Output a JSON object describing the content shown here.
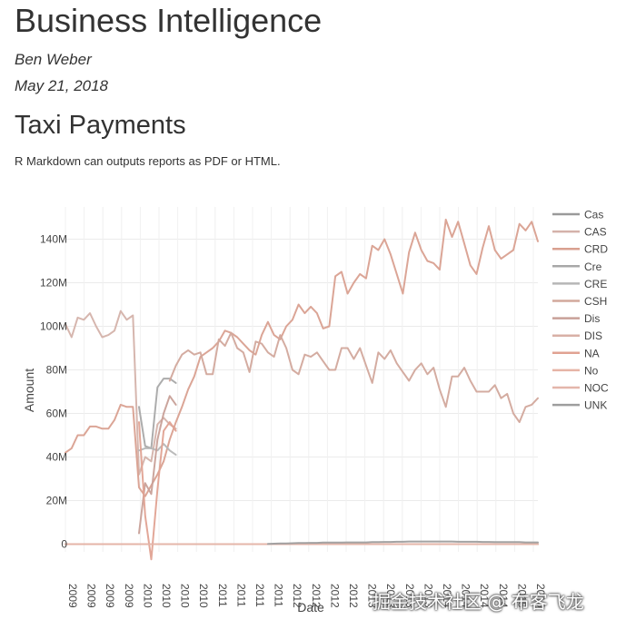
{
  "report": {
    "title": "Business Intelligence",
    "author": "Ben Weber",
    "date": "May 21, 2018"
  },
  "section": {
    "heading": "Taxi Payments",
    "text": "R Markdown can outputs reports as PDF or HTML."
  },
  "watermark": "掘金技术社区 @ 布客飞龙",
  "chart_data": {
    "type": "line",
    "xlabel": "Date",
    "ylabel": "Amount",
    "ylim": [
      -7,
      150
    ],
    "yunit": "M",
    "grid": true,
    "legend_placement": "right",
    "y_ticks": [
      0,
      20,
      40,
      60,
      80,
      100,
      120,
      140
    ],
    "y_tick_labels": [
      "0",
      "20M",
      "40M",
      "60M",
      "80M",
      "100M",
      "120M",
      "140M"
    ],
    "x_tick_labels": [
      "2009",
      "2009",
      "2009",
      "2009",
      "2010",
      "2010",
      "2010",
      "2010",
      "2011",
      "2011",
      "2011",
      "2011",
      "2012",
      "2012",
      "2012",
      "2012",
      "2013",
      "2013",
      "2013",
      "2013",
      "2014",
      "2014",
      "2014",
      "2014",
      "2015",
      "2015"
    ],
    "x": [
      "2009-01",
      "2009-02",
      "2009-03",
      "2009-04",
      "2009-05",
      "2009-06",
      "2009-07",
      "2009-08",
      "2009-09",
      "2009-10",
      "2009-11",
      "2009-12",
      "2010-01",
      "2010-02",
      "2010-03",
      "2010-04",
      "2010-05",
      "2010-06",
      "2010-07",
      "2010-08",
      "2010-09",
      "2010-10",
      "2010-11",
      "2010-12",
      "2011-01",
      "2011-02",
      "2011-03",
      "2011-04",
      "2011-05",
      "2011-06",
      "2011-07",
      "2011-08",
      "2011-09",
      "2011-10",
      "2011-11",
      "2011-12",
      "2012-01",
      "2012-02",
      "2012-03",
      "2012-04",
      "2012-05",
      "2012-06",
      "2012-07",
      "2012-08",
      "2012-09",
      "2012-10",
      "2012-11",
      "2012-12",
      "2013-01",
      "2013-02",
      "2013-03",
      "2013-04",
      "2013-05",
      "2013-06",
      "2013-07",
      "2013-08",
      "2013-09",
      "2013-10",
      "2013-11",
      "2013-12",
      "2014-01",
      "2014-02",
      "2014-03",
      "2014-04",
      "2014-05",
      "2014-06",
      "2014-07",
      "2014-08",
      "2014-09",
      "2014-10",
      "2014-11",
      "2014-12",
      "2015-01",
      "2015-02",
      "2015-03",
      "2015-04",
      "2015-05",
      "2015-06"
    ],
    "series": [
      {
        "name": "Cas",
        "color": "#9a9a9a",
        "values": [
          0,
          0,
          0,
          0,
          0,
          0,
          0,
          0,
          0,
          0,
          0,
          0,
          0,
          0,
          0,
          0,
          0,
          0,
          0,
          0,
          0,
          0,
          0,
          0,
          0,
          0,
          0,
          0,
          0,
          0,
          0,
          0,
          0,
          0,
          0,
          0,
          0,
          0,
          0,
          0,
          0,
          0,
          0,
          0,
          0,
          0,
          0,
          0,
          0,
          0,
          0,
          0,
          0,
          0,
          0,
          0,
          0,
          0,
          0,
          0,
          0,
          0,
          0,
          0,
          0,
          0,
          0,
          0,
          0,
          0,
          0,
          0,
          0,
          0,
          0,
          0,
          0,
          0
        ]
      },
      {
        "name": "CAS",
        "color": "#d4b2aa",
        "values": [
          101,
          95,
          104,
          103,
          106,
          100,
          95,
          96,
          98,
          107,
          103,
          105,
          32,
          40,
          38,
          55,
          58,
          55,
          53,
          null,
          null,
          null,
          null,
          null,
          null,
          null,
          null,
          null,
          null,
          null,
          null,
          null,
          null,
          null,
          null,
          null,
          null,
          null,
          null,
          null,
          null,
          null,
          null,
          null,
          null,
          null,
          null,
          null,
          null,
          null,
          null,
          null,
          null,
          null,
          null,
          null,
          null,
          null,
          null,
          null,
          null,
          null,
          null,
          null,
          null,
          null,
          null,
          null,
          null,
          null,
          null,
          null,
          null,
          null,
          null,
          null,
          null,
          null
        ]
      },
      {
        "name": "CRD",
        "color": "#d9a090",
        "values": [
          42,
          44,
          50,
          50,
          54,
          54,
          53,
          53,
          57,
          64,
          63,
          63,
          26,
          22,
          27,
          32,
          38,
          48,
          56,
          63,
          71,
          77,
          86,
          88,
          90,
          93,
          98,
          97,
          95,
          92,
          89,
          87,
          96,
          102,
          96,
          94,
          100,
          103,
          110,
          106,
          109,
          106,
          99,
          100,
          123,
          125,
          115,
          120,
          124,
          122,
          137,
          135,
          140,
          133,
          124,
          115,
          134,
          143,
          135,
          130,
          129,
          126,
          149,
          141,
          148,
          138,
          128,
          124,
          136,
          146,
          135,
          131,
          133,
          135,
          147,
          144,
          148,
          139
        ]
      },
      {
        "name": "Cre",
        "color": "#a8a8a8",
        "values": [
          null,
          null,
          null,
          null,
          null,
          null,
          null,
          null,
          null,
          null,
          null,
          null,
          63,
          45,
          44,
          72,
          76,
          76,
          74,
          null,
          null,
          null,
          null,
          null,
          null,
          null,
          null,
          null,
          null,
          null,
          null,
          null,
          null,
          null,
          null,
          null,
          null,
          null,
          null,
          null,
          null,
          null,
          null,
          null,
          null,
          null,
          null,
          null,
          null,
          null,
          null,
          null,
          null,
          null,
          null,
          null,
          null,
          null,
          null,
          null,
          null,
          null,
          null,
          null,
          null,
          null,
          null,
          null,
          null,
          null,
          null,
          null,
          null,
          null,
          null,
          null,
          null,
          null
        ]
      },
      {
        "name": "CRE",
        "color": "#b6b6b6",
        "values": [
          null,
          null,
          null,
          null,
          null,
          null,
          null,
          null,
          null,
          null,
          null,
          null,
          43,
          44,
          44,
          43,
          46,
          43,
          41,
          null,
          null,
          null,
          null,
          null,
          null,
          null,
          null,
          null,
          null,
          null,
          null,
          null,
          null,
          null,
          null,
          null,
          null,
          null,
          null,
          null,
          null,
          null,
          null,
          null,
          null,
          null,
          null,
          null,
          null,
          null,
          null,
          null,
          null,
          null,
          null,
          null,
          null,
          null,
          null,
          null,
          null,
          null,
          null,
          null,
          null,
          null,
          null,
          null,
          null,
          null,
          null,
          null,
          null,
          null,
          null,
          null,
          null,
          null
        ]
      },
      {
        "name": "CSH",
        "color": "#d2a89c",
        "values": [
          null,
          null,
          null,
          null,
          null,
          null,
          null,
          null,
          null,
          null,
          null,
          null,
          null,
          null,
          null,
          null,
          null,
          75,
          82,
          87,
          89,
          87,
          88,
          78,
          78,
          94,
          91,
          97,
          90,
          88,
          79,
          93,
          92,
          88,
          86,
          96,
          90,
          80,
          78,
          87,
          86,
          88,
          84,
          80,
          80,
          90,
          90,
          85,
          90,
          82,
          74,
          88,
          85,
          89,
          83,
          79,
          75,
          80,
          83,
          78,
          81,
          71,
          63,
          77,
          77,
          81,
          75,
          70,
          70,
          70,
          73,
          67,
          69,
          60,
          56,
          63,
          64,
          67
        ]
      },
      {
        "name": "Dis",
        "color": "#c8a098",
        "values": [
          null,
          null,
          null,
          null,
          null,
          null,
          null,
          null,
          null,
          null,
          null,
          null,
          5,
          28,
          23,
          48,
          60,
          68,
          64,
          null,
          null,
          null,
          null,
          null,
          null,
          null,
          null,
          null,
          null,
          null,
          null,
          null,
          null,
          null,
          null,
          null,
          null,
          null,
          null,
          null,
          null,
          null,
          null,
          null,
          null,
          null,
          null,
          null,
          null,
          null,
          null,
          null,
          null,
          null,
          null,
          null,
          null,
          null,
          null,
          null,
          null,
          null,
          null,
          null,
          null,
          null,
          null,
          null,
          null,
          null,
          null,
          null,
          null,
          null,
          null,
          null,
          null,
          null
        ]
      },
      {
        "name": "DIS",
        "color": "#d8b0a6",
        "values": [
          0,
          0,
          0,
          0,
          0,
          0,
          0,
          0,
          0,
          0,
          0,
          0,
          0,
          0,
          0,
          0,
          0,
          0,
          0,
          0,
          0,
          0,
          0,
          0,
          0,
          0,
          0,
          0,
          0,
          0,
          0,
          0,
          0,
          0,
          0,
          0,
          0,
          0,
          0,
          0,
          0,
          0,
          0,
          0,
          0,
          0,
          0,
          0,
          0,
          0,
          0,
          0,
          0,
          0,
          0,
          0,
          0,
          0,
          0,
          0,
          0,
          0,
          0,
          0,
          0,
          0,
          0,
          0,
          0,
          0,
          0,
          0,
          0,
          0,
          0,
          0,
          0,
          0
        ]
      },
      {
        "name": "NA",
        "color": "#e0a292",
        "values": [
          null,
          null,
          null,
          null,
          null,
          null,
          null,
          null,
          null,
          null,
          null,
          null,
          56,
          13,
          -7,
          25,
          52,
          56,
          52,
          null,
          null,
          null,
          null,
          null,
          null,
          null,
          null,
          null,
          null,
          null,
          null,
          null,
          null,
          null,
          null,
          null,
          null,
          null,
          null,
          null,
          null,
          null,
          null,
          null,
          null,
          null,
          null,
          null,
          null,
          null,
          null,
          null,
          null,
          null,
          null,
          null,
          null,
          null,
          null,
          null,
          null,
          null,
          null,
          null,
          null,
          null,
          null,
          null,
          null,
          null,
          null,
          null,
          null,
          null,
          null,
          null,
          null,
          null
        ]
      },
      {
        "name": "No",
        "color": "#e6b4a6",
        "values": [
          0,
          0,
          0,
          0,
          0,
          0,
          0,
          0,
          0,
          0,
          0,
          0,
          0,
          0,
          0,
          0,
          0,
          0,
          0,
          0,
          0,
          0,
          0,
          0,
          0,
          0,
          0,
          0,
          0,
          0,
          0,
          0,
          0,
          0,
          0,
          0,
          0,
          0,
          0,
          0,
          0,
          0,
          0,
          0,
          0,
          0,
          0,
          0,
          0,
          0,
          0,
          0,
          0,
          0,
          0,
          0,
          0,
          0,
          0,
          0,
          0,
          0,
          0,
          0,
          0,
          0,
          0,
          0,
          0,
          0,
          0,
          0,
          0,
          0,
          0,
          0,
          0,
          0
        ]
      },
      {
        "name": "NOC",
        "color": "#e4b6aa",
        "values": [
          null,
          null,
          null,
          null,
          null,
          null,
          null,
          null,
          null,
          null,
          null,
          null,
          0,
          0,
          0,
          0,
          0,
          0,
          0,
          0,
          0,
          0,
          0,
          0,
          0,
          0,
          0,
          0,
          0,
          0,
          0,
          0,
          0,
          0,
          0,
          0,
          0,
          0,
          0,
          0,
          0,
          0,
          0,
          0,
          0,
          0,
          0,
          0,
          0,
          0,
          0,
          0,
          0,
          0,
          0,
          0,
          0,
          0,
          0,
          0,
          0,
          0,
          0,
          0,
          0,
          0,
          0,
          0,
          0,
          0,
          0,
          0,
          0,
          0,
          0,
          0,
          0,
          0
        ]
      },
      {
        "name": "UNK",
        "color": "#9e9e9e",
        "values": [
          null,
          null,
          null,
          null,
          null,
          null,
          null,
          null,
          null,
          null,
          null,
          null,
          null,
          null,
          null,
          null,
          null,
          null,
          null,
          null,
          null,
          null,
          null,
          null,
          null,
          null,
          null,
          null,
          null,
          null,
          null,
          null,
          null,
          0.1,
          0.2,
          0.3,
          0.3,
          0.4,
          0.5,
          0.5,
          0.6,
          0.6,
          0.7,
          0.7,
          0.7,
          0.7,
          0.8,
          0.8,
          0.8,
          0.8,
          0.9,
          0.9,
          1.0,
          1.0,
          1.1,
          1.1,
          1.2,
          1.2,
          1.2,
          1.2,
          1.2,
          1.2,
          1.2,
          1.2,
          1.1,
          1.1,
          1.1,
          1.1,
          1.0,
          1.0,
          0.9,
          0.9,
          0.9,
          0.9,
          0.9,
          0.8,
          0.8,
          0.8
        ]
      }
    ]
  }
}
